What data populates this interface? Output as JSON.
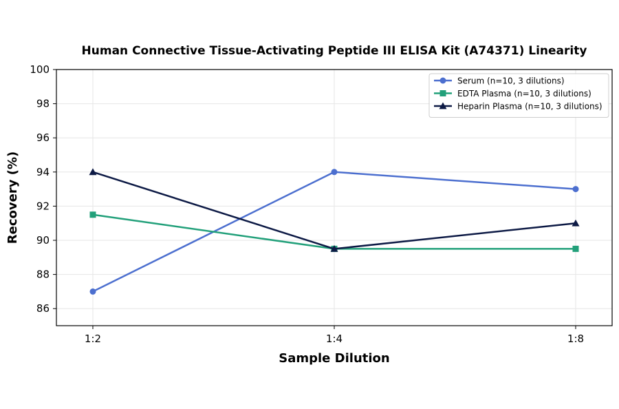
{
  "chart_data": {
    "type": "line",
    "title": "Human Connective Tissue-Activating Peptide III ELISA Kit (A74371) Linearity",
    "xlabel": "Sample Dilution",
    "ylabel": "Recovery (%)",
    "categories": [
      "1:2",
      "1:4",
      "1:8"
    ],
    "ylim": [
      85,
      100
    ],
    "yticks": [
      86,
      88,
      90,
      92,
      94,
      96,
      98,
      100
    ],
    "grid": true,
    "legend_position": "top-right",
    "series": [
      {
        "name": "Serum (n=10, 3 dilutions)",
        "values": [
          87,
          94,
          93
        ],
        "color": "#4c6fcf",
        "marker": "circle"
      },
      {
        "name": "EDTA Plasma (n=10, 3 dilutions)",
        "values": [
          91.5,
          89.5,
          89.5
        ],
        "color": "#22a07a",
        "marker": "square"
      },
      {
        "name": "Heparin Plasma (n=10, 3 dilutions)",
        "values": [
          94,
          89.5,
          91
        ],
        "color": "#0d1a45",
        "marker": "triangle"
      }
    ]
  }
}
